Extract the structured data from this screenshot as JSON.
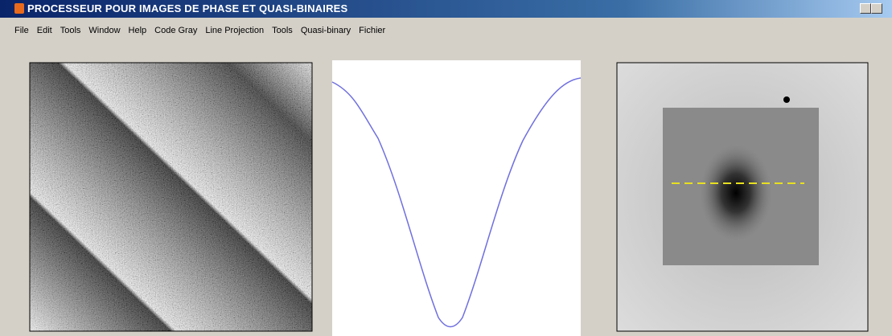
{
  "window": {
    "title": "PROCESSEUR POUR IMAGES DE PHASE ET QUASI-BINAIRES"
  },
  "menu": {
    "items": [
      "File",
      "Edit",
      "Tools",
      "Window",
      "Help",
      "Code Gray",
      "Line Projection",
      "Tools",
      "Quasi-binary",
      "Fichier"
    ]
  }
}
